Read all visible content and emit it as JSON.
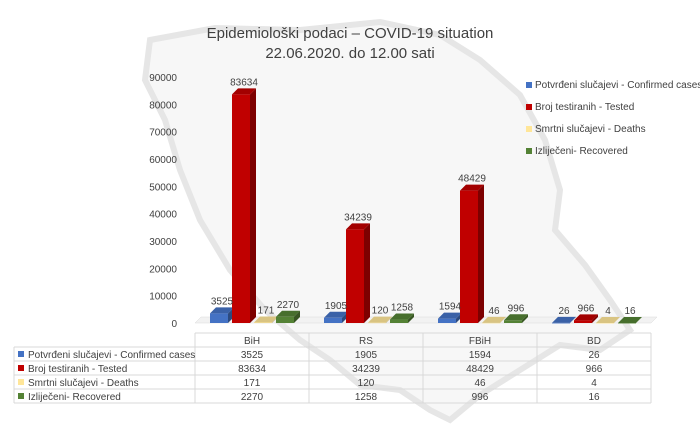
{
  "chart_data": {
    "type": "bar",
    "title": [
      "Epidemiološki podaci – COVID-19 situation",
      "22.06.2020. do 12.00 sati"
    ],
    "categories": [
      "BiH",
      "RS",
      "FBiH",
      "BD"
    ],
    "series": [
      {
        "name": "Potvrđeni slučajevi - Confirmed cases",
        "values": [
          3525,
          1905,
          1594,
          26
        ],
        "color": "#4472c4"
      },
      {
        "name": "Broj testiranih - Tested",
        "values": [
          83634,
          34239,
          48429,
          966
        ],
        "color": "#c00000"
      },
      {
        "name": "Smrtni slučajevi - Deaths",
        "values": [
          171,
          120,
          46,
          4
        ],
        "color": "#ffe699"
      },
      {
        "name": "Izliječeni- Recovered",
        "values": [
          2270,
          1258,
          996,
          16
        ],
        "color": "#548235"
      }
    ],
    "ylim": [
      0,
      90000
    ],
    "yticks": [
      "0",
      "10000",
      "20000",
      "30000",
      "40000",
      "50000",
      "60000",
      "70000",
      "80000",
      "90000"
    ],
    "grid": false,
    "legend_position": "right",
    "data_table": true,
    "style": "3d-bars"
  }
}
